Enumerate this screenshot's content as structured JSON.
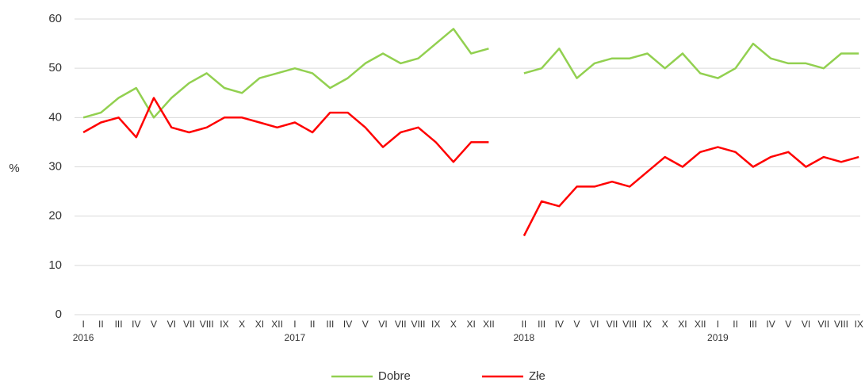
{
  "chart_data": {
    "type": "line",
    "y_axis_label": "%",
    "categories": [
      "I",
      "II",
      "III",
      "IV",
      "V",
      "VI",
      "VII",
      "VIII",
      "IX",
      "X",
      "XI",
      "XII",
      "I",
      "II",
      "III",
      "IV",
      "V",
      "VI",
      "VII",
      "VIII",
      "IX",
      "X",
      "XI",
      "XII",
      null,
      "II",
      "III",
      "IV",
      "V",
      "VI",
      "VII",
      "VIII",
      "IX",
      "X",
      "XI",
      "XII",
      "I",
      "II",
      "III",
      "IV",
      "V",
      "VI",
      "VII",
      "VIII",
      "IX"
    ],
    "groups": [
      {
        "label": "2016",
        "start": 0
      },
      {
        "label": "2017",
        "start": 12
      },
      {
        "label": "2018",
        "start": 25
      },
      {
        "label": "2019",
        "start": 36
      }
    ],
    "series": [
      {
        "name": "Dobre",
        "color": "#92d050",
        "values": [
          40,
          41,
          44,
          46,
          40,
          44,
          47,
          49,
          46,
          45,
          48,
          49,
          50,
          49,
          46,
          48,
          51,
          53,
          51,
          52,
          55,
          58,
          53,
          54,
          null,
          49,
          50,
          54,
          48,
          51,
          52,
          52,
          53,
          50,
          53,
          49,
          48,
          50,
          55,
          52,
          51,
          51,
          50,
          53,
          53
        ]
      },
      {
        "name": "Złe",
        "color": "#ff0000",
        "values": [
          37,
          39,
          40,
          36,
          44,
          38,
          37,
          38,
          40,
          40,
          39,
          38,
          39,
          37,
          41,
          41,
          38,
          34,
          37,
          38,
          35,
          31,
          35,
          35,
          null,
          16,
          23,
          22,
          26,
          26,
          27,
          26,
          29,
          32,
          30,
          33,
          34,
          33,
          30,
          32,
          33,
          30,
          32,
          31,
          32
        ]
      }
    ],
    "ylim": [
      0,
      60
    ],
    "yticks": [
      0,
      10,
      20,
      30,
      40,
      50,
      60
    ],
    "grid": true,
    "legend": "bottom"
  }
}
